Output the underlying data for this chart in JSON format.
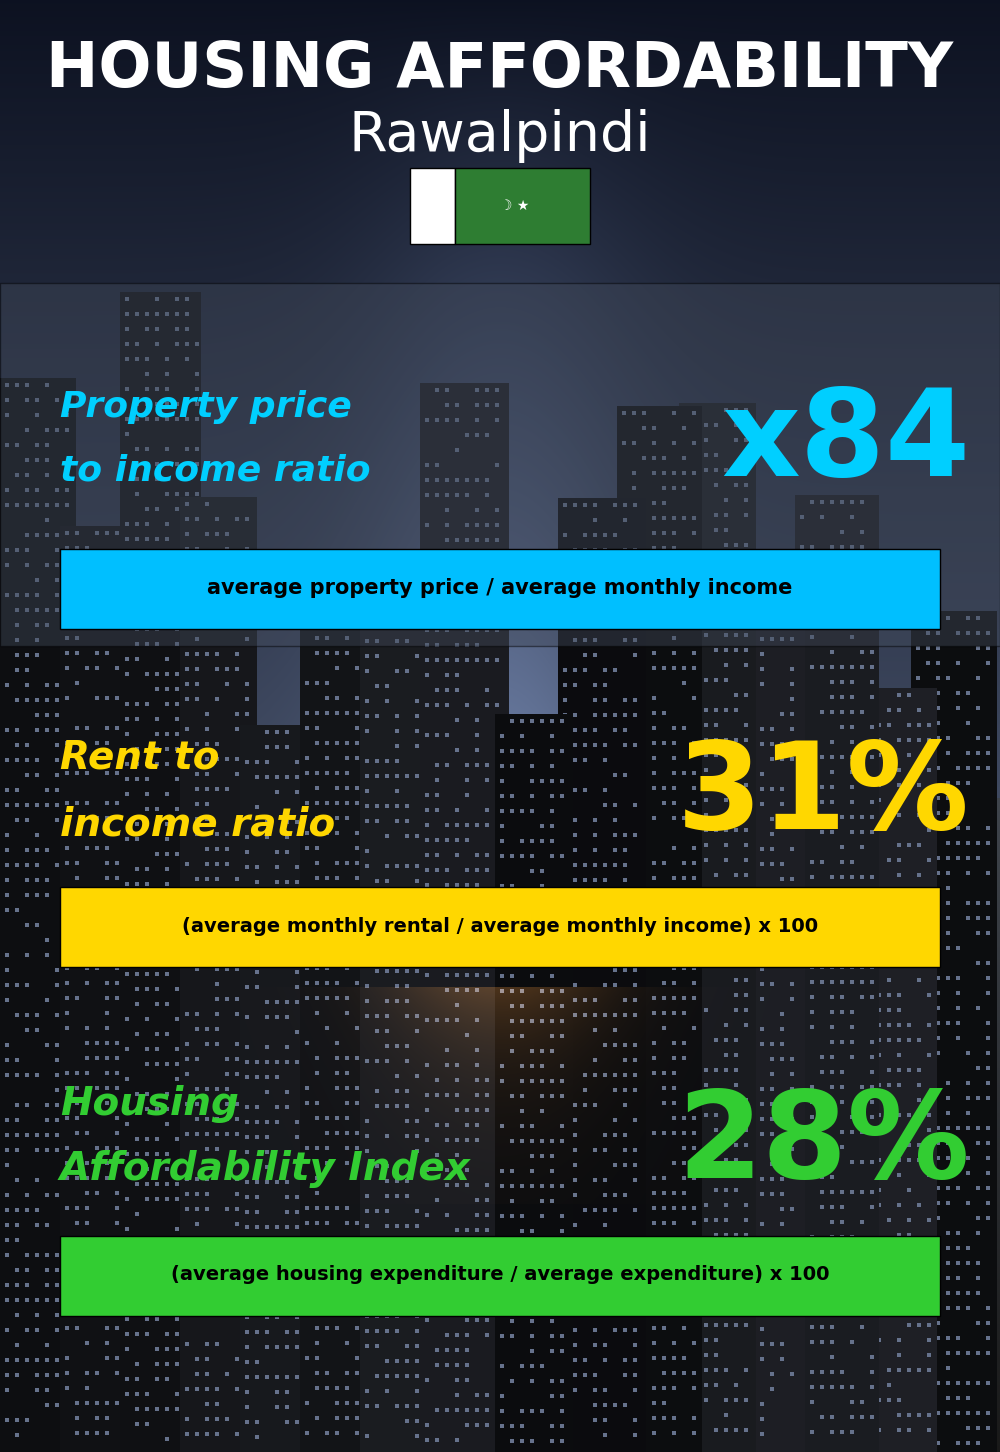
{
  "title_line1": "HOUSING AFFORDABILITY",
  "title_line2": "Rawalpindi",
  "bg_color": "#0a1628",
  "section1_label_line1": "Property price",
  "section1_label_line2": "to income ratio",
  "section1_value": "x84",
  "section1_label_color": "#00cfff",
  "section1_value_color": "#00cfff",
  "section1_formula": "average property price / average monthly income",
  "section1_formula_bg": "#00bfff",
  "section2_label_line1": "Rent to",
  "section2_label_line2": "income ratio",
  "section2_value": "31%",
  "section2_label_color": "#ffd700",
  "section2_value_color": "#ffd700",
  "section2_formula": "(average monthly rental / average monthly income) x 100",
  "section2_formula_bg": "#ffd700",
  "section3_label_line1": "Housing",
  "section3_label_line2": "Affordability Index",
  "section3_value": "28%",
  "section3_label_color": "#32cd32",
  "section3_value_color": "#32cd32",
  "section3_formula": "(average housing expenditure / average expenditure) x 100",
  "section3_formula_bg": "#32cd32"
}
